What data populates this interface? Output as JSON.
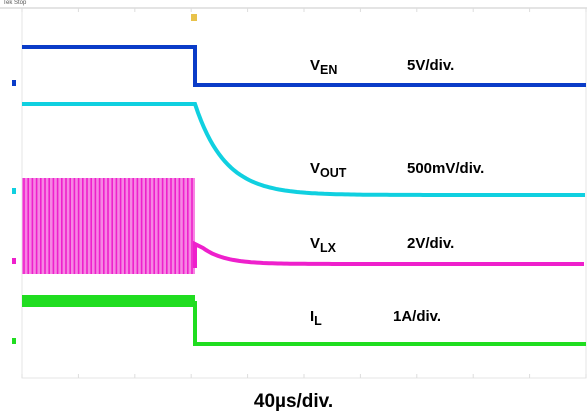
{
  "chart_data": {
    "type": "line",
    "title": "",
    "timebase": "40µs/div.",
    "header_text": "Tek Stop",
    "trigger_marker": "T",
    "channels": [
      {
        "name_base": "V",
        "name_sub": "EN",
        "scale": "5V/div.",
        "color": "#0a3cc8"
      },
      {
        "name_base": "V",
        "name_sub": "OUT",
        "scale": "500mV/div.",
        "color": "#10d0e0"
      },
      {
        "name_base": "V",
        "name_sub": "LX",
        "scale": "2V/div.",
        "color": "#ee20cc"
      },
      {
        "name_base": "I",
        "name_sub": "L",
        "scale": "1A/div.",
        "color": "#20dd20"
      }
    ]
  }
}
